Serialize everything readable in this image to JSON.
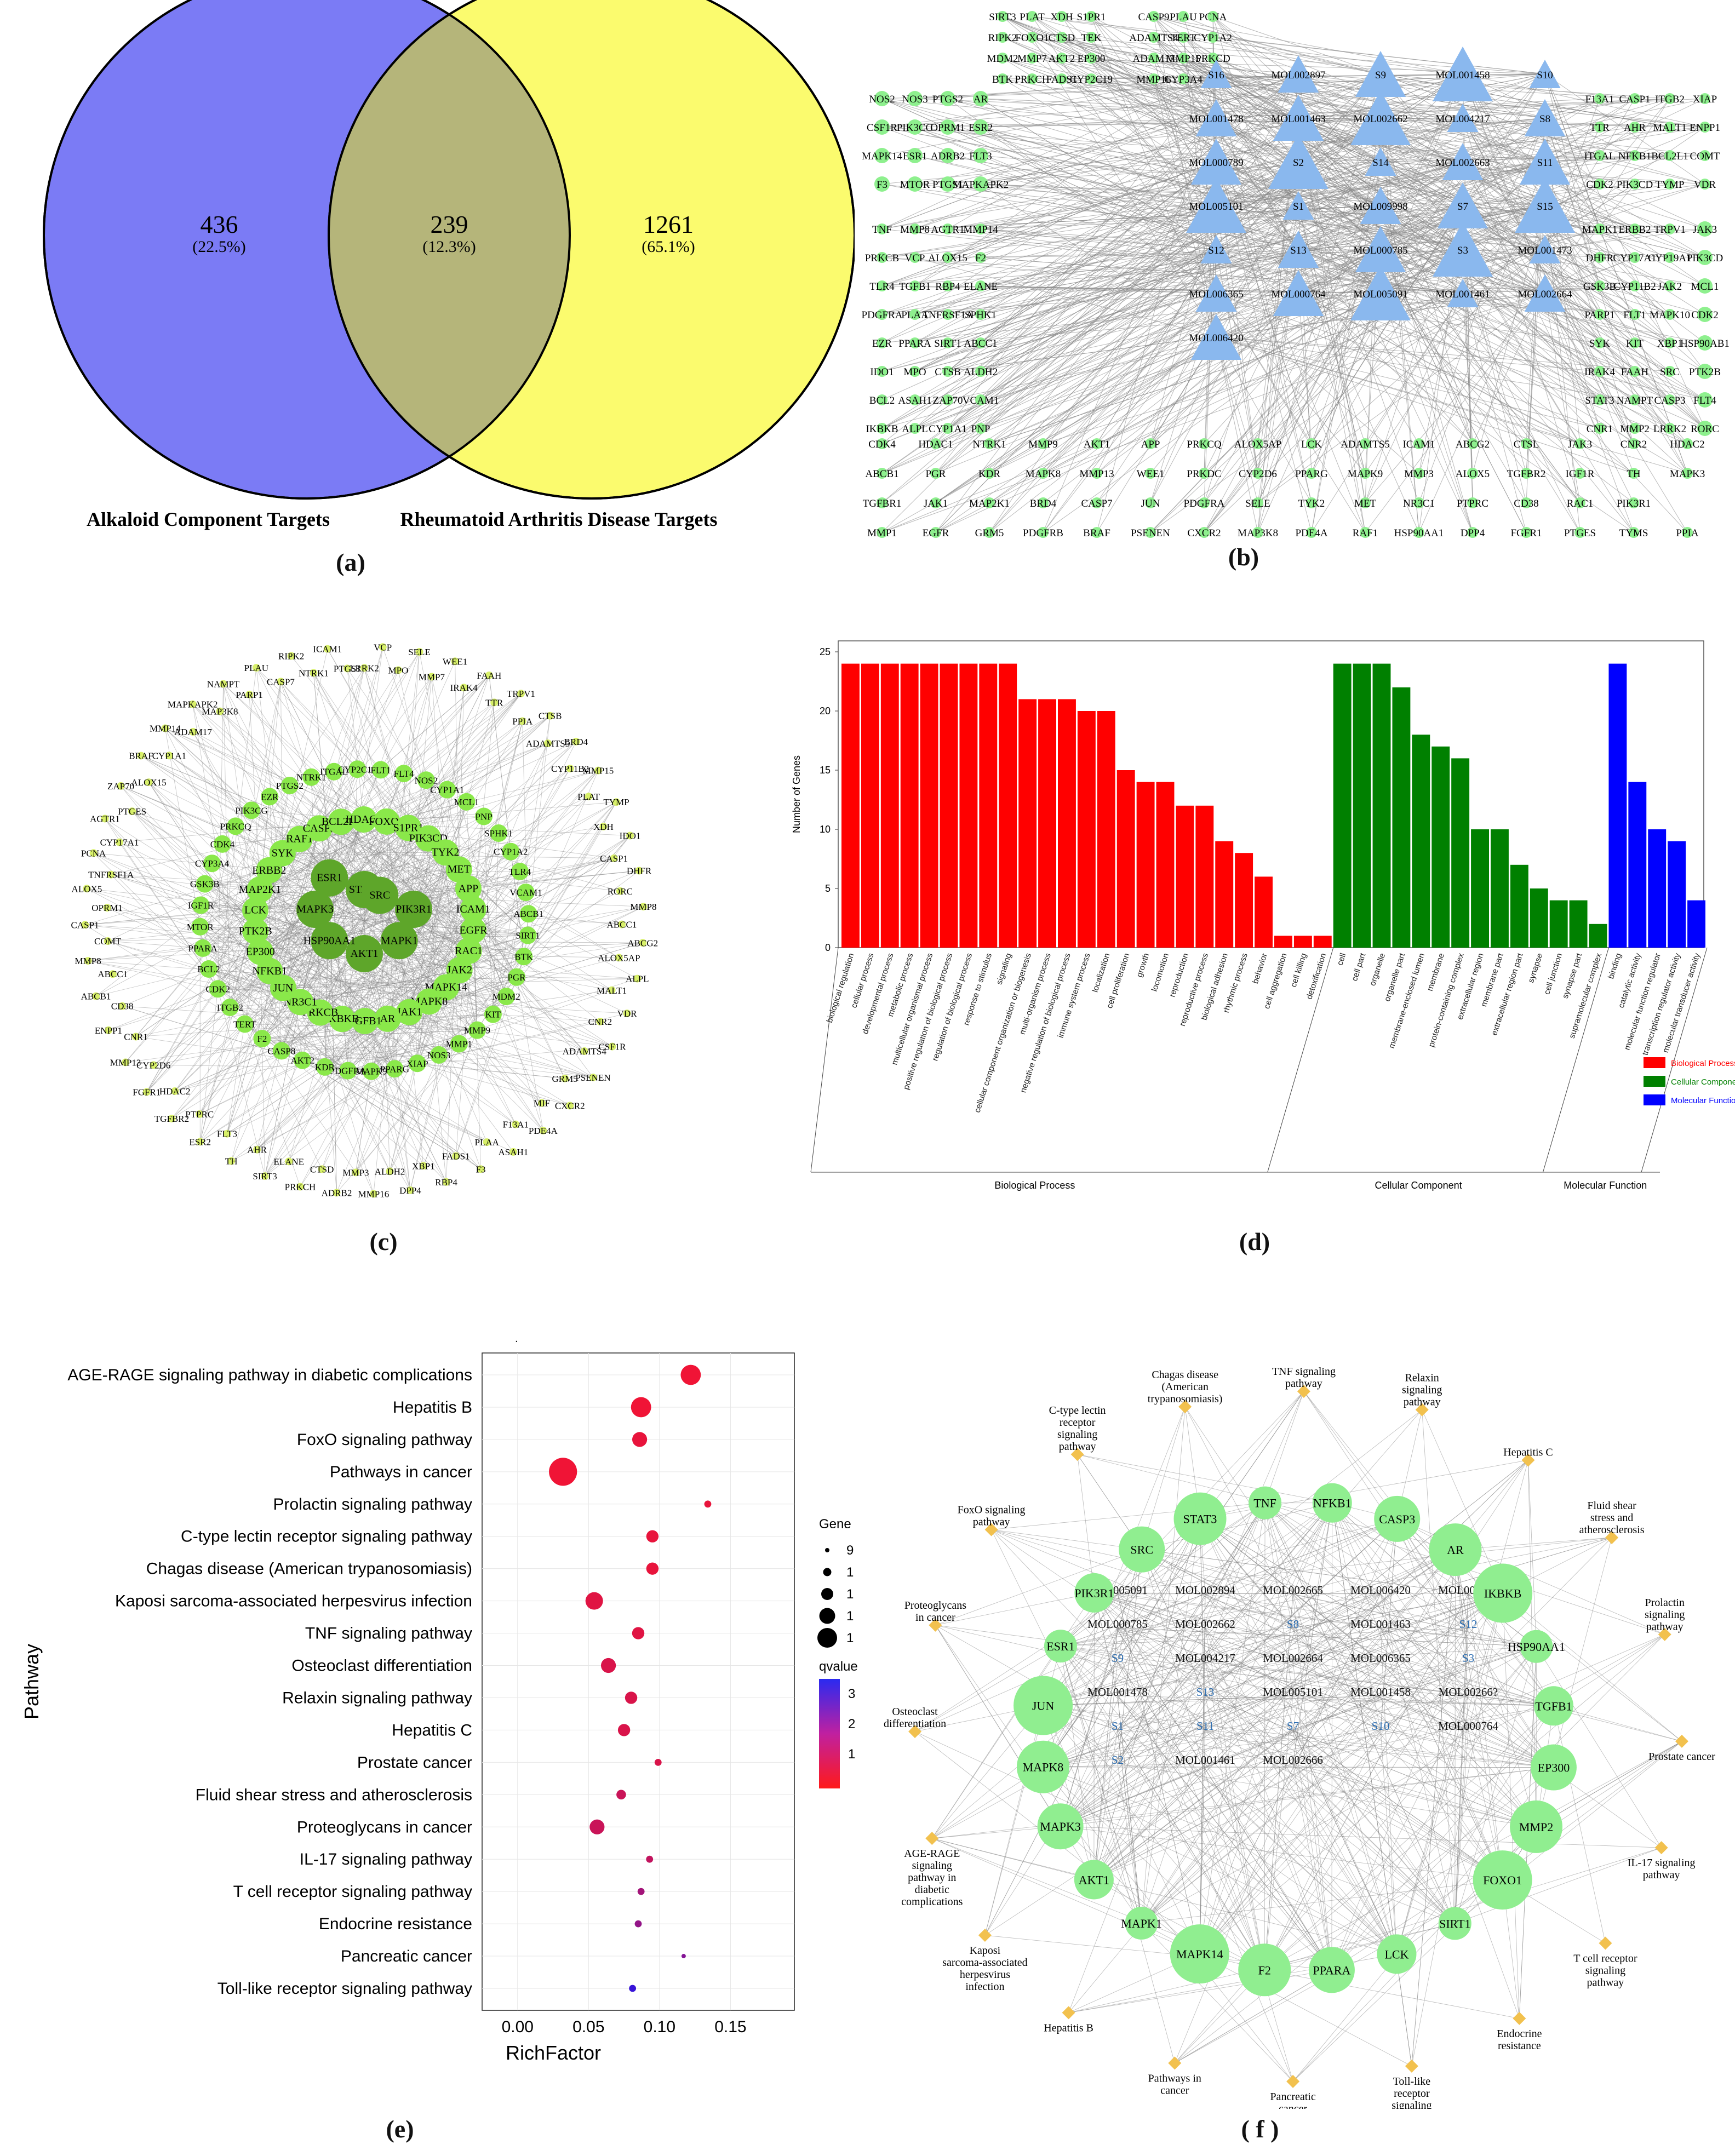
{
  "labels": {
    "a": "(a)",
    "b": "(b)",
    "c": "(c)",
    "d": "(d)",
    "e": "(e)",
    "f": "( f )"
  },
  "venn": {
    "left_value": "436",
    "left_pct": "(22.5%)",
    "mid_value": "239",
    "mid_pct": "(12.3%)",
    "right_value": "1261",
    "right_pct": "(65.1%)",
    "left_label": "Alkaloid Component Targets",
    "right_label": "Rheumatoid Arthritis Disease Targets",
    "left_color": "#7b7bf5",
    "right_color": "#fbfb6e",
    "overlap_color": "#b5b57a"
  },
  "network_b": {
    "green_color": "#8ef08e",
    "blue_color": "#8ab8ee",
    "gene_columns": [
      [
        "SIRT3",
        "RIPK2",
        "MDM2",
        "BTK"
      ],
      [
        "PLAT",
        "FOXO1",
        "MMP7",
        "PRKCH"
      ],
      [
        "XDH",
        "CTSD",
        "AKT2",
        "FADS1"
      ],
      [
        "S1PR1",
        "TEK",
        "EP300",
        "CYP2C19"
      ],
      [
        "CASP9",
        "ADAMTS4",
        "ADAM17",
        "MMP16"
      ],
      [
        "PLAU",
        "TERT",
        "MMP15",
        "CYP3A4"
      ],
      [
        "PCNA",
        "CYP1A2",
        "PRKCD"
      ]
    ],
    "left_genes": [
      [
        "NOS2",
        "NOS3",
        "PTGS2",
        "AR"
      ],
      [
        "CSF1R",
        "PIK3CG",
        "OPRM1",
        "ESR2"
      ],
      [
        "MAPK14",
        "ESR1",
        "ADRB2",
        "FLT3"
      ],
      [
        "F3",
        "MTOR",
        "PTGS1",
        "MAPKAPK2"
      ],
      [
        "TNF",
        "MMP8",
        "AGTR1",
        "MMP14"
      ],
      [
        "PRKCB",
        "VCP",
        "ALOX15",
        "F2"
      ],
      [
        "TLR4",
        "TGFB1",
        "RBP4",
        "ELANE"
      ],
      [
        "PDGFRA",
        "PLAA",
        "TNFRSF1A",
        "SPHK1"
      ],
      [
        "EZR",
        "PPARA",
        "SIRT1",
        "ABCC1"
      ],
      [
        "IDO1",
        "MPO",
        "CTSB",
        "ALDH2"
      ],
      [
        "BCL2",
        "ASAH1",
        "ZAP70",
        "VCAM1"
      ],
      [
        "IKBKB",
        "ALPL",
        "CYP1A1",
        "PNP"
      ]
    ],
    "right_genes": [
      [
        "F13A1",
        "CASP1",
        "ITGB2",
        "XIAP"
      ],
      [
        "TTR",
        "AHR",
        "MALT1",
        "ENPP1"
      ],
      [
        "ITGAL",
        "NFKB1",
        "BCL2L1",
        "COMT"
      ],
      [
        "CDK2",
        "PIK3CD",
        "TYMP",
        "VDR"
      ],
      [
        "MAPK1",
        "ERBB2",
        "TRPV1",
        "JAK3"
      ],
      [
        "DHFR",
        "CYP17A1",
        "CYP19A1",
        "PIK3CD"
      ],
      [
        "GSK3B",
        "CYP11B2",
        "JAK2",
        "MCL1"
      ],
      [
        "PARP1",
        "FLT1",
        "MAPK10",
        "CDK2"
      ],
      [
        "SYK",
        "KIT",
        "XBP1",
        "HSP90AB1"
      ],
      [
        "IRAK4",
        "FAAH",
        "SRC",
        "PTK2B"
      ],
      [
        "STAT3",
        "NAMPT",
        "CASP3",
        "FLT4"
      ],
      [
        "CNR1",
        "MMP2",
        "LRRK2",
        "RORC"
      ]
    ],
    "bottom_genes": [
      [
        "CDK4",
        "HDAC1",
        "NTRK1",
        "MMP9",
        "AKT1",
        "APP",
        "PRKCQ",
        "ALOX5AP",
        "LCK",
        "ADAMTS5",
        "ICAM1",
        "ABCG2",
        "CTSL",
        "JAK3",
        "CNR2",
        "HDAC2"
      ],
      [
        "ABCB1",
        "PGR",
        "KDR",
        "MAPK8",
        "MMP13",
        "WEE1",
        "PRKDC",
        "CYP2D6",
        "PPARG",
        "MAPK9",
        "MMP3",
        "ALOX5",
        "TGFBR2",
        "IGF1R",
        "TH",
        "MAPK3"
      ],
      [
        "TGFBR1",
        "JAK1",
        "MAP2K1",
        "BRD4",
        "CASP7",
        "JUN",
        "PDGFRA",
        "SELE",
        "TYK2",
        "MET",
        "NR3C1",
        "PTPRC",
        "CD38",
        "RAC1",
        "PIK3R1"
      ],
      [
        "MMP1",
        "EGFR",
        "GRM5",
        "PDGFRB",
        "BRAF",
        "PSENEN",
        "CXCR2",
        "MAP3K8",
        "PDE4A",
        "RAF1",
        "HSP90AA1",
        "DPP4",
        "FGFR1",
        "PTGES",
        "TYMS",
        "PPIA"
      ]
    ],
    "center_labels": [
      [
        "S16",
        "MOL002897",
        "S9",
        "MOL001458",
        "S10"
      ],
      [
        "MOL001478",
        "MOL001463",
        "MOL002662",
        "MOL004217",
        "S8"
      ],
      [
        "MOL000789",
        "S2",
        "S14",
        "MOL002663",
        "S11"
      ],
      [
        "MOL005101",
        "S1",
        "MOL009998",
        "S7",
        "S15"
      ],
      [
        "S12",
        "S13",
        "MOL000785",
        "S3",
        "MOL001473"
      ],
      [
        "MOL006365",
        "MOL000764",
        "MOL005091",
        "MOL001461",
        "MOL002664"
      ],
      [
        "MOL006420"
      ]
    ]
  },
  "network_c": {
    "hub_nodes": [
      "PIK3R1",
      "MAPK1",
      "AKT1",
      "HSP90AA1",
      "MAPK3",
      "ESR1",
      "STAT3",
      "SRC"
    ],
    "mid_nodes": [
      "EGFR",
      "RAC1",
      "JAK2",
      "MAPK14",
      "MAPK8",
      "JAK1",
      "AR",
      "TGFB1",
      "IKBKB",
      "PRKCB",
      "NR3C1",
      "JUN",
      "NFKB1",
      "EP300",
      "PTK2B",
      "LCK",
      "MAP2K1",
      "ERBB2",
      "SYK",
      "RAF1",
      "CASP3",
      "BCL2L1",
      "HDAC1",
      "FOXO1",
      "S1PR1",
      "PIK3CD",
      "TYK2",
      "MET",
      "APP",
      "ICAM1",
      "SIRT1",
      "BTK",
      "PGR",
      "MDM2",
      "KIT",
      "MMP9",
      "MMP1",
      "NOS3",
      "XIAP",
      "PPARG",
      "MAPK9",
      "PDGFRA",
      "KDR",
      "AKT2",
      "CASP8",
      "F2",
      "TERT",
      "ITGB2",
      "CDK2",
      "BCL2",
      "PPARA",
      "MTOR",
      "IGF1R",
      "GSK3B",
      "CYP3A4",
      "CDK4",
      "PRKCQ",
      "PIK3CG",
      "EZR",
      "PTGS2",
      "NTRK1",
      "ITGAL",
      "CYP2C19",
      "FLT1",
      "FLT4",
      "NOS2",
      "CYP1A1",
      "MCL1",
      "PNP",
      "SPHK1",
      "CYP1A2",
      "TLR4",
      "VCAM1",
      "ABCB1"
    ],
    "outer_nodes": [
      "LRRK2",
      "VCP",
      "MPO",
      "SELE",
      "MMP7",
      "WEE1",
      "IRAK4",
      "FAAH",
      "TTR",
      "TRPV1",
      "PPIA",
      "CTSB",
      "ADAMTS5",
      "BRD4",
      "CYP11B2",
      "MMP15",
      "PLAT",
      "TYMP",
      "XDH",
      "IDO1",
      "CASP1",
      "DHFR",
      "RORC",
      "MMP8",
      "ABCC1",
      "ABCG2",
      "ALOX5AP",
      "ALPL",
      "MALT1",
      "VDR",
      "CNR2",
      "CSF1R",
      "ADAMTS4",
      "PSENEN",
      "GRM5",
      "CXCR2",
      "MIF",
      "PDE4A",
      "F13A1",
      "ASAH1",
      "PLAA",
      "F3",
      "FADS1",
      "RBP4",
      "XBP1",
      "DPP4",
      "ALDH2",
      "MMP16",
      "MMP3",
      "ADRB2",
      "CTSD",
      "PRKCH",
      "ELANE",
      "SIRT3",
      "AHR",
      "TH",
      "FLT3",
      "ESR2",
      "PTPRC",
      "TGFBR2",
      "HDAC2",
      "FGFR1",
      "CYP2D6",
      "MMP13",
      "CNR1",
      "ENPP1",
      "CD38",
      "ABCB1",
      "ABCC1",
      "MMP8",
      "COMT",
      "CASP1",
      "OPRM1",
      "ALOX5",
      "TNFRSF1A",
      "PCNA",
      "CYP17A1",
      "AGTR1",
      "PTGES",
      "ZAP70",
      "ALOX15",
      "BRAF",
      "CYP1A1",
      "MMP14",
      "ADAM17",
      "MAPKAPK2",
      "MAP3K8",
      "NAMPT",
      "PARP1",
      "PLAU",
      "CASP7",
      "RIPK2",
      "NTRK1",
      "ICAM1",
      "PTGS1"
    ],
    "hub_color": "#5ea62a",
    "mid_color": "#8ae84a",
    "outer_color": "#d8f06a"
  },
  "chart_data": [
    {
      "type": "bar",
      "ylabel": "Number of Genes",
      "ylim": [
        0,
        25
      ],
      "yticks": [
        0,
        5,
        10,
        15,
        20,
        25
      ],
      "groups": [
        {
          "name": "Biological Process",
          "color": "#ff0000",
          "categories": [
            "biological regulation",
            "cellular process",
            "developmental process",
            "metabolic process",
            "multicellular organismal process",
            "positive regulation of biological process",
            "regulation of biological process",
            "response to stimulus",
            "signaling",
            "cellular component organization or biogenesis",
            "multi-organism process",
            "negative regulation of biological process",
            "immune system process",
            "localization",
            "cell proliferation",
            "growth",
            "locomotion",
            "reproduction",
            "reproductive process",
            "biological adhesion",
            "rhythmic process",
            "behavior",
            "cell aggregation",
            "cell killing",
            "detoxification"
          ],
          "values": [
            24,
            24,
            24,
            24,
            24,
            24,
            24,
            24,
            24,
            21,
            21,
            21,
            20,
            20,
            15,
            14,
            14,
            12,
            12,
            9,
            8,
            6,
            1,
            1,
            1
          ]
        },
        {
          "name": "Cellular Component",
          "color": "#008000",
          "categories": [
            "cell",
            "cell part",
            "organelle",
            "organelle part",
            "membrane-enclosed lumen",
            "membrane",
            "protein-containing complex",
            "extracellular region",
            "membrane part",
            "extracellular region part",
            "synapse",
            "cell junction",
            "synapse part",
            "supramolecular complex"
          ],
          "values": [
            24,
            24,
            24,
            22,
            18,
            17,
            16,
            10,
            10,
            7,
            5,
            4,
            4,
            2
          ]
        },
        {
          "name": "Molecular Function",
          "color": "#0000ff",
          "categories": [
            "binding",
            "catalytic activity",
            "molecular function regulator",
            "transcription regulator activity",
            "molecular transducer activity"
          ],
          "values": [
            24,
            14,
            10,
            9,
            4
          ]
        }
      ],
      "legend": [
        "Biological Process",
        "Cellular Component",
        "Molecular Function"
      ],
      "group_labels": [
        "Biological Process",
        "Cellular Component",
        "Molecular Function"
      ]
    },
    {
      "type": "scatter",
      "xlabel": "RichFactor",
      "ylabel": "Pathway",
      "xlim": [
        -0.025,
        0.195
      ],
      "xticks": [
        0.0,
        0.05,
        0.1,
        0.15
      ],
      "xtick_labels": [
        "0.00",
        "0.05",
        "0.10",
        "0.15"
      ],
      "size_legend_title": "Gene",
      "size_legend_labels": [
        "9",
        "1",
        "1",
        "1",
        "1"
      ],
      "color_legend_title": "qvalue",
      "color_legend_labels": [
        "3",
        "2",
        "1"
      ],
      "dot_title": ".",
      "pathways": [
        {
          "name": "AGE-RAGE signaling pathway in diabetic complications",
          "x": 0.122,
          "genes": 14,
          "q": 1.0
        },
        {
          "name": "Hepatitis B",
          "x": 0.087,
          "genes": 14,
          "q": 1.0
        },
        {
          "name": "FoxO signaling pathway",
          "x": 0.086,
          "genes": 12,
          "q": 1.1
        },
        {
          "name": "Pathways in cancer",
          "x": 0.032,
          "genes": 17,
          "q": 1.0
        },
        {
          "name": "Prolactin signaling pathway",
          "x": 0.134,
          "genes": 9,
          "q": 1.1
        },
        {
          "name": "C-type lectin receptor signaling pathway",
          "x": 0.095,
          "genes": 11,
          "q": 1.1
        },
        {
          "name": "Chagas disease (American trypanosomiasis)",
          "x": 0.095,
          "genes": 11,
          "q": 1.1
        },
        {
          "name": "Kaposi sarcoma-associated herpesvirus infection",
          "x": 0.054,
          "genes": 13,
          "q": 1.2
        },
        {
          "name": "TNF signaling pathway",
          "x": 0.085,
          "genes": 11,
          "q": 1.2
        },
        {
          "name": "Osteoclast differentiation",
          "x": 0.064,
          "genes": 12,
          "q": 1.3
        },
        {
          "name": "Relaxin signaling pathway",
          "x": 0.08,
          "genes": 11,
          "q": 1.3
        },
        {
          "name": "Hepatitis C",
          "x": 0.075,
          "genes": 11,
          "q": 1.3
        },
        {
          "name": "Prostate cancer",
          "x": 0.099,
          "genes": 9,
          "q": 1.3
        },
        {
          "name": "Fluid shear stress and atherosclerosis",
          "x": 0.073,
          "genes": 10,
          "q": 1.5
        },
        {
          "name": "Proteoglycans in cancer",
          "x": 0.056,
          "genes": 12,
          "q": 1.5
        },
        {
          "name": "IL-17 signaling pathway",
          "x": 0.093,
          "genes": 9,
          "q": 1.6
        },
        {
          "name": "T cell receptor signaling pathway",
          "x": 0.087,
          "genes": 9,
          "q": 2.0
        },
        {
          "name": "Endocrine resistance",
          "x": 0.085,
          "genes": 9,
          "q": 2.2
        },
        {
          "name": "Pancreatic cancer",
          "x": 0.117,
          "genes": 8,
          "q": 2.4
        },
        {
          "name": "Toll-like receptor signaling pathway",
          "x": 0.081,
          "genes": 9,
          "q": 3.4
        }
      ]
    }
  ],
  "network_f": {
    "gene_nodes": [
      "TNF",
      "NFKB1",
      "CASP3",
      "AR",
      "IKBKB",
      "HSP90AA1",
      "TGFB1",
      "EP300",
      "MMP2",
      "FOXO1",
      "SIRT1",
      "LCK",
      "PPARA",
      "F2",
      "MAPK14",
      "MAPK1",
      "AKT1",
      "MAPK3",
      "MAPK8",
      "JUN",
      "ESR1",
      "PIK3R1",
      "SRC",
      "STAT3"
    ],
    "center_labels": [
      [
        "MOL005091",
        "MOL002894",
        "MOL002665",
        "MOL006420",
        "MOL009998"
      ],
      [
        "MOL000785",
        "MOL002662",
        "S8",
        "MOL001463",
        "S12"
      ],
      [
        "S9",
        "MOL004217",
        "MOL002664",
        "MOL006365",
        "S3"
      ],
      [
        "MOL001478",
        "S13",
        "MOL005101",
        "MOL001458",
        "MOL00266?"
      ],
      [
        "S1",
        "S11",
        "S7",
        "S10",
        "MOL000764"
      ],
      [
        "S2",
        "MOL001461",
        "MOL002666"
      ]
    ],
    "pathway_nodes": [
      "Chagas disease\n(American\ntrypanosomiasis)",
      "TNF signaling\npathway",
      "Relaxin\nsignaling\npathway",
      "Hepatitis C",
      "Fluid shear\nstress and\natherosclerosis",
      "Prolactin\nsignaling\npathway",
      "Prostate cancer",
      "IL-17 signaling\npathway",
      "T cell receptor\nsignaling\npathway",
      "Endocrine\nresistance",
      "Toll-like\nreceptor\nsignaling\npathway",
      "Pancreatic\ncancer",
      "Pathways in\ncancer",
      "Hepatitis B",
      "Kaposi\nsarcoma-associated\nherpesvirus\ninfection",
      "AGE-RAGE\nsignaling\npathway in\ndiabetic\ncomplications",
      "Osteoclast\ndifferentiation",
      "Proteoglycans\nin cancer",
      "FoxO signaling\npathway",
      "C-type lectin\nreceptor\nsignaling\npathway"
    ],
    "gene_color": "#90ee90",
    "pathway_color": "#f2c14e",
    "mol_color": "#2b6cb0"
  }
}
